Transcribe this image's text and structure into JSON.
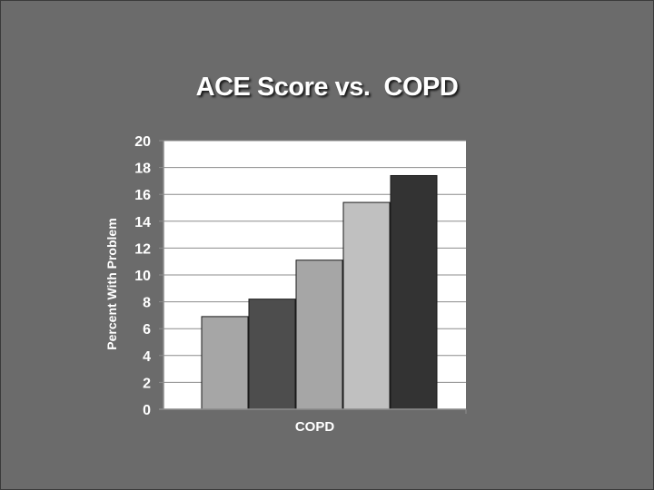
{
  "chart_data": {
    "type": "bar",
    "title": "ACE Score vs.  COPD",
    "ylabel": "Percent With Problem",
    "xlabel": "",
    "categories": [
      "COPD"
    ],
    "ylim": [
      0,
      20
    ],
    "yticks": [
      0,
      2,
      4,
      6,
      8,
      10,
      12,
      14,
      16,
      18,
      20
    ],
    "grid": true,
    "legend": "none",
    "series": [
      {
        "values": [
          6.9
        ],
        "color": "#a6a6a6"
      },
      {
        "values": [
          8.2
        ],
        "color": "#4d4d4d"
      },
      {
        "values": [
          11.1
        ],
        "color": "#a6a6a6"
      },
      {
        "values": [
          15.4
        ],
        "color": "#c0c0c0"
      },
      {
        "values": [
          17.4
        ],
        "color": "#333333"
      }
    ],
    "plot_background": "#ffffff",
    "gridline_color": "#8c8c8c"
  }
}
